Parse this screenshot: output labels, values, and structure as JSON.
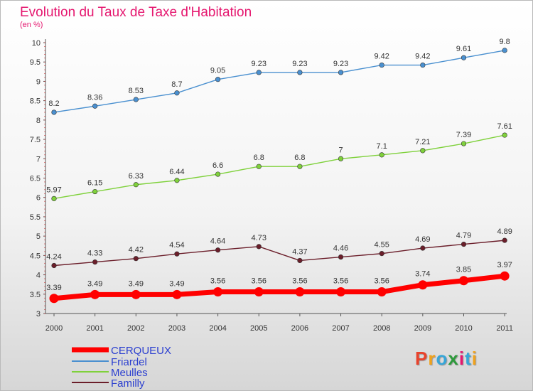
{
  "header": {
    "title": "Evolution du Taux de Taxe d'Habitation",
    "subtitle": "(en %)"
  },
  "logo": {
    "text": "Proxiti",
    "colors": [
      "#e8432c",
      "#f0a21c",
      "#37a6d8",
      "#2e9a3c",
      "#e5176f",
      "#37a6d8",
      "#f0a21c"
    ]
  },
  "chart_data": {
    "type": "line",
    "title": "Evolution du Taux de Taxe d'Habitation",
    "subtitle": "(en %)",
    "x": [
      "2000",
      "2001",
      "2002",
      "2003",
      "2004",
      "2005",
      "2006",
      "2007",
      "2008",
      "2009",
      "2010",
      "2011"
    ],
    "ylim": [
      3,
      10
    ],
    "yticks": [
      "3",
      "3.5",
      "4",
      "4.5",
      "5",
      "5.5",
      "6",
      "6.5",
      "7",
      "7.5",
      "8",
      "8.5",
      "9",
      "9.5",
      "10"
    ],
    "grid": false,
    "legend_position": "bottom-left",
    "series": [
      {
        "name": "CERQUEUX",
        "color": "#ff0000",
        "values": [
          3.39,
          3.49,
          3.49,
          3.49,
          3.56,
          3.56,
          3.56,
          3.56,
          3.56,
          3.74,
          3.85,
          3.97
        ],
        "labels": [
          "3.39",
          "3.49",
          "3.49",
          "3.49",
          "3.56",
          "3.56",
          "3.56",
          "3.56",
          "3.56",
          "3.74",
          "3.85",
          "3.97"
        ]
      },
      {
        "name": "Friardel",
        "color": "#4a90d0",
        "values": [
          8.2,
          8.36,
          8.53,
          8.7,
          9.05,
          9.23,
          9.23,
          9.23,
          9.42,
          9.42,
          9.61,
          9.8
        ],
        "labels": [
          "8.2",
          "8.36",
          "8.53",
          "8.7",
          "9.05",
          "9.23",
          "9.23",
          "9.23",
          "9.42",
          "9.42",
          "9.61",
          "9.8"
        ]
      },
      {
        "name": "Meulles",
        "color": "#7fd13b",
        "values": [
          5.97,
          6.15,
          6.33,
          6.44,
          6.6,
          6.8,
          6.8,
          7,
          7.1,
          7.21,
          7.39,
          7.61
        ],
        "labels": [
          "5.97",
          "6.15",
          "6.33",
          "6.44",
          "6.6",
          "6.8",
          "6.8",
          "7",
          "7.1",
          "7.21",
          "7.39",
          "7.61"
        ]
      },
      {
        "name": "Familly",
        "color": "#6b1e2a",
        "values": [
          4.24,
          4.33,
          4.42,
          4.54,
          4.64,
          4.73,
          4.37,
          4.46,
          4.55,
          4.69,
          4.79,
          4.89
        ],
        "labels": [
          "4.24",
          "4.33",
          "4.42",
          "4.54",
          "4.64",
          "4.73",
          "4.37",
          "4.46",
          "4.55",
          "4.69",
          "4.79",
          "4.89"
        ]
      }
    ]
  }
}
